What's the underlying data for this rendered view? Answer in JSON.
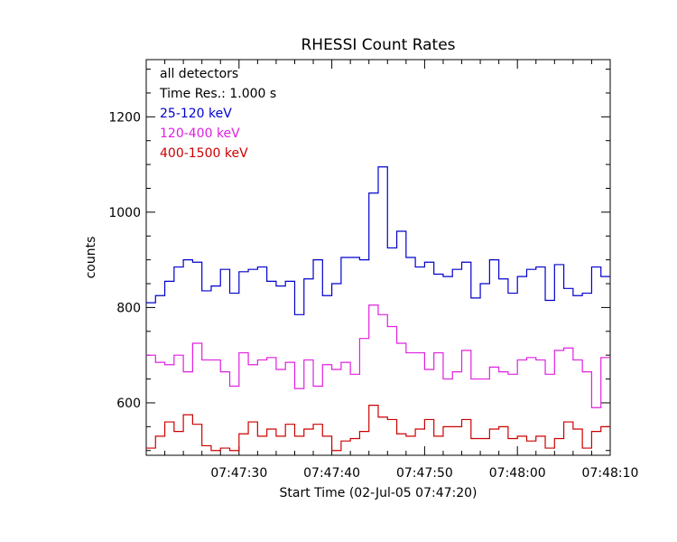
{
  "chart_data": {
    "type": "line",
    "step": true,
    "title": "RHESSI Count Rates",
    "xlabel": "Start Time (02-Jul-05 07:47:20)",
    "ylabel": "counts",
    "xlim": [
      0,
      50
    ],
    "ylim": [
      490,
      1320
    ],
    "x_ticks": [
      {
        "value": 10,
        "label": "07:47:30"
      },
      {
        "value": 20,
        "label": "07:47:40"
      },
      {
        "value": 30,
        "label": "07:47:50"
      },
      {
        "value": 40,
        "label": "07:48:00"
      },
      {
        "value": 50,
        "label": "07:48:10"
      }
    ],
    "y_ticks": [
      {
        "value": 600,
        "label": "600"
      },
      {
        "value": 800,
        "label": "800"
      },
      {
        "value": 1000,
        "label": "1000"
      },
      {
        "value": 1200,
        "label": "1200"
      }
    ],
    "annotations": [
      "all detectors",
      "Time Res.: 1.000 s"
    ],
    "legend_position": "top-left",
    "series": [
      {
        "name": "25-120 keV",
        "color": "#0000cc",
        "values": [
          810,
          825,
          855,
          885,
          900,
          895,
          835,
          845,
          880,
          830,
          875,
          880,
          885,
          855,
          845,
          855,
          785,
          860,
          900,
          825,
          850,
          905,
          905,
          900,
          1040,
          1095,
          925,
          960,
          905,
          885,
          895,
          870,
          865,
          880,
          895,
          820,
          850,
          900,
          860,
          830,
          865,
          880,
          885,
          815,
          890,
          840,
          825,
          830,
          885,
          865
        ]
      },
      {
        "name": "120-400 keV",
        "color": "#e020e0",
        "values": [
          700,
          685,
          680,
          700,
          665,
          725,
          690,
          690,
          665,
          635,
          705,
          680,
          690,
          695,
          670,
          685,
          630,
          690,
          635,
          680,
          670,
          685,
          660,
          735,
          805,
          785,
          760,
          725,
          705,
          705,
          670,
          705,
          650,
          665,
          710,
          650,
          650,
          675,
          665,
          660,
          690,
          695,
          690,
          660,
          710,
          715,
          690,
          665,
          590,
          695
        ]
      },
      {
        "name": "400-1500 keV",
        "color": "#cc0000",
        "values": [
          505,
          530,
          560,
          540,
          575,
          555,
          510,
          500,
          505,
          500,
          535,
          560,
          530,
          545,
          530,
          555,
          530,
          545,
          555,
          530,
          500,
          520,
          525,
          540,
          595,
          570,
          565,
          535,
          530,
          545,
          565,
          530,
          550,
          550,
          565,
          525,
          525,
          545,
          550,
          525,
          530,
          520,
          530,
          505,
          525,
          560,
          545,
          505,
          540,
          550
        ]
      }
    ]
  }
}
